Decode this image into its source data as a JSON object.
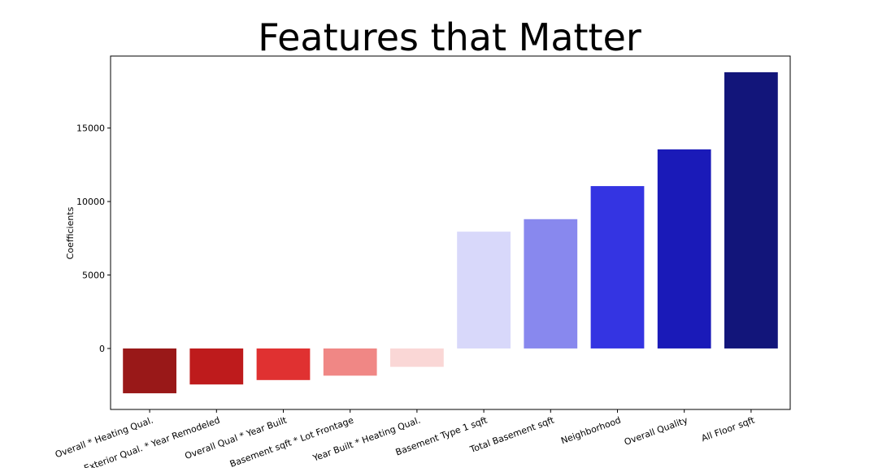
{
  "chart_data": {
    "type": "bar",
    "title": "Features that Matter",
    "xlabel": "",
    "ylabel": "Coefficients",
    "categories": [
      "Overall * Heating Qual.",
      "Exterior Qual. * Year Remodeled",
      "Overall Qual * Year Built",
      "Basement sqft * Lot Frontage",
      "Year Built * Heating Qual.",
      "Basement Type 1 sqft",
      "Total Basement sqft",
      "Neighborhood",
      "Overall Quality",
      "All Floor sqft"
    ],
    "values": [
      -3050,
      -2450,
      -2150,
      -1850,
      -1250,
      7950,
      8800,
      11050,
      13550,
      18800
    ],
    "colors": [
      "#991818",
      "#be1b1c",
      "#e03131",
      "#f08785",
      "#fad7d6",
      "#d8d8fa",
      "#8888ee",
      "#3434e2",
      "#1a1ab8",
      "#12157a"
    ],
    "ylim": [
      -4150,
      19900
    ],
    "yticks": [
      0,
      5000,
      10000,
      15000
    ],
    "grid": false,
    "legend": "none"
  }
}
